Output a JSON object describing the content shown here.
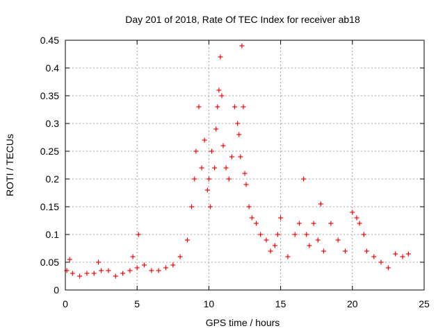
{
  "chart_data": {
    "type": "scatter",
    "title": "Day 201 of 2018, Rate Of TEC Index for receiver ab18",
    "xlabel": "GPS time / hours",
    "ylabel": "ROTI / TECUs",
    "xlim": [
      0,
      25
    ],
    "ylim": [
      0,
      0.45
    ],
    "xticks": [
      0,
      5,
      10,
      15,
      20,
      25
    ],
    "yticks": [
      0,
      0.05,
      0.1,
      0.15,
      0.2,
      0.25,
      0.3,
      0.35,
      0.4,
      0.45
    ],
    "ytick_labels": [
      "0",
      "0.05",
      "0.1",
      "0.15",
      "0.2",
      "0.25",
      "0.3",
      "0.35",
      "0.4",
      "0.45"
    ],
    "grid": true,
    "marker": "+",
    "series": [
      {
        "name": "ROTI",
        "color": "#ff0000",
        "x": [
          0.1,
          0.3,
          0.5,
          1.0,
          1.5,
          2.0,
          2.3,
          2.5,
          3.0,
          3.5,
          4.0,
          4.5,
          4.7,
          5.0,
          5.1,
          5.5,
          6.0,
          6.5,
          7.0,
          7.5,
          8.0,
          8.5,
          8.8,
          9.0,
          9.1,
          9.3,
          9.5,
          9.7,
          9.9,
          10.0,
          10.1,
          10.2,
          10.4,
          10.5,
          10.6,
          10.7,
          10.8,
          10.9,
          11.0,
          11.2,
          11.4,
          11.6,
          11.8,
          12.0,
          12.1,
          12.2,
          12.3,
          12.4,
          12.5,
          12.6,
          12.8,
          13.0,
          13.3,
          13.6,
          14.0,
          14.3,
          14.6,
          14.8,
          15.0,
          15.5,
          16.0,
          16.3,
          16.6,
          16.8,
          17.0,
          17.3,
          17.6,
          17.8,
          18.0,
          18.5,
          19.0,
          19.5,
          20.0,
          20.3,
          20.5,
          20.8,
          21.0,
          21.5,
          22.0,
          22.5,
          23.0,
          23.5,
          23.9
        ],
        "y": [
          0.035,
          0.055,
          0.03,
          0.025,
          0.03,
          0.03,
          0.05,
          0.035,
          0.035,
          0.025,
          0.03,
          0.035,
          0.06,
          0.04,
          0.1,
          0.045,
          0.035,
          0.035,
          0.04,
          0.045,
          0.06,
          0.09,
          0.15,
          0.2,
          0.25,
          0.33,
          0.22,
          0.27,
          0.18,
          0.2,
          0.15,
          0.25,
          0.22,
          0.29,
          0.33,
          0.36,
          0.42,
          0.35,
          0.26,
          0.22,
          0.2,
          0.24,
          0.33,
          0.3,
          0.28,
          0.24,
          0.44,
          0.33,
          0.21,
          0.19,
          0.15,
          0.13,
          0.12,
          0.1,
          0.09,
          0.07,
          0.08,
          0.1,
          0.13,
          0.06,
          0.1,
          0.12,
          0.2,
          0.1,
          0.08,
          0.12,
          0.09,
          0.155,
          0.07,
          0.12,
          0.09,
          0.07,
          0.14,
          0.13,
          0.12,
          0.1,
          0.07,
          0.06,
          0.05,
          0.04,
          0.065,
          0.06,
          0.065
        ]
      }
    ]
  }
}
